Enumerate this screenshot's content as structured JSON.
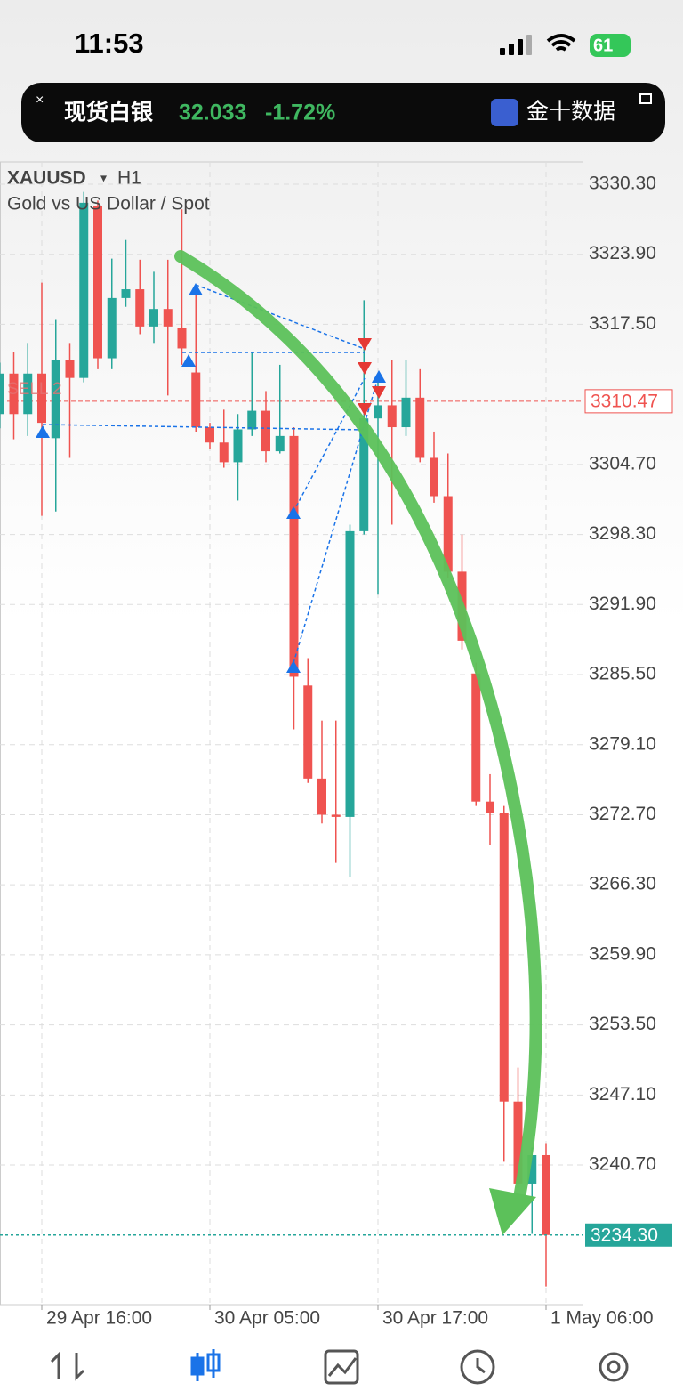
{
  "status_bar": {
    "time": "11:53",
    "battery": "61"
  },
  "ticker": {
    "name": "现货白银",
    "price": "32.033",
    "change": "-1.72%",
    "source": "金十数据"
  },
  "chart_data": {
    "type": "candlestick",
    "symbol": "XAUUSD",
    "timeframe": "H1",
    "subtitle": "Gold vs US Dollar / Spot",
    "order_label": "SELL 2",
    "categories": [
      null,
      null,
      null,
      "29 Apr 16:00",
      null,
      null,
      null,
      null,
      null,
      null,
      null,
      null,
      null,
      null,
      null,
      "30 Apr 05:00",
      null,
      null,
      null,
      null,
      null,
      null,
      null,
      null,
      null,
      null,
      null,
      "30 Apr 17:00",
      null,
      null,
      null,
      null,
      null,
      null,
      null,
      null,
      null,
      null,
      null,
      "1 May 06:00"
    ],
    "open": [
      3309.3,
      3313.0,
      3309.3,
      3313.0,
      3307.1,
      3314.2,
      3312.6,
      3328.3,
      3314.4,
      3319.9,
      3320.7,
      3317.3,
      3318.9,
      3317.2,
      3313.1,
      3308.1,
      3306.7,
      3304.9,
      3307.9,
      3309.6,
      3305.9,
      3307.3,
      3284.5,
      3276.0,
      3272.7,
      3272.5,
      3298.6,
      3308.9,
      3310.1,
      3308.1,
      3310.8,
      3305.3,
      3301.8,
      3294.9,
      3285.6,
      3273.9,
      3272.9,
      3246.5,
      3239.0,
      3241.6
    ],
    "high": [
      3314.0,
      3315.0,
      3315.8,
      3321.3,
      3317.9,
      3315.8,
      3329.6,
      3328.8,
      3323.5,
      3325.2,
      3323.4,
      3322.3,
      3323.4,
      3328.0,
      3320.3,
      3308.5,
      3309.7,
      3309.3,
      3314.9,
      3311.4,
      3313.8,
      3308.1,
      3287.0,
      3281.3,
      3281.3,
      3299.2,
      3319.7,
      3313.0,
      3314.2,
      3314.2,
      3313.4,
      3307.7,
      3305.7,
      3298.3,
      3286.6,
      3276.4,
      3273.5,
      3249.6,
      3242.3,
      3242.7
    ],
    "low": [
      3308.0,
      3307.0,
      3307.3,
      3300.0,
      3300.4,
      3305.3,
      3312.2,
      3313.4,
      3313.4,
      3319.1,
      3316.6,
      3315.8,
      3311.0,
      3313.8,
      3307.7,
      3306.1,
      3304.4,
      3301.4,
      3307.3,
      3304.9,
      3305.7,
      3280.5,
      3275.6,
      3271.9,
      3268.3,
      3267.0,
      3298.3,
      3292.8,
      3299.2,
      3307.3,
      3304.9,
      3301.2,
      3294.3,
      3287.8,
      3273.5,
      3269.9,
      3241.0,
      3238.6,
      3234.4,
      3229.6
    ],
    "close": [
      3313.0,
      3309.3,
      3313.0,
      3308.5,
      3314.2,
      3312.6,
      3328.6,
      3314.4,
      3319.9,
      3320.7,
      3317.3,
      3318.9,
      3317.3,
      3315.3,
      3308.1,
      3306.7,
      3304.9,
      3307.9,
      3309.6,
      3305.9,
      3307.3,
      3285.3,
      3276.0,
      3272.7,
      3272.5,
      3298.6,
      3308.9,
      3310.1,
      3308.1,
      3310.8,
      3305.3,
      3301.8,
      3294.9,
      3288.6,
      3273.9,
      3272.9,
      3246.5,
      3239.0,
      3241.6,
      3234.3
    ],
    "up_color": "#26a69a",
    "down_color": "#ef5350",
    "ylim": [
      3227.94,
      3332.33
    ],
    "yticks": [
      {
        "value": 3330.3,
        "label": "3330.30"
      },
      {
        "value": 3323.9,
        "label": "3323.90"
      },
      {
        "value": 3317.5,
        "label": "3317.50"
      },
      {
        "value": 3304.7,
        "label": "3304.70"
      },
      {
        "value": 3298.3,
        "label": "3298.30"
      },
      {
        "value": 3291.9,
        "label": "3291.90"
      },
      {
        "value": 3285.5,
        "label": "3285.50"
      },
      {
        "value": 3279.1,
        "label": "3279.10"
      },
      {
        "value": 3272.7,
        "label": "3272.70"
      },
      {
        "value": 3266.3,
        "label": "3266.30"
      },
      {
        "value": 3259.9,
        "label": "3259.90"
      },
      {
        "value": 3253.5,
        "label": "3253.50"
      },
      {
        "value": 3247.1,
        "label": "3247.10"
      },
      {
        "value": 3240.7,
        "label": "3240.70"
      }
    ],
    "grid": true,
    "bid": 3310.47,
    "last": {
      "value": 3234.3,
      "label": "3234.30"
    }
  }
}
